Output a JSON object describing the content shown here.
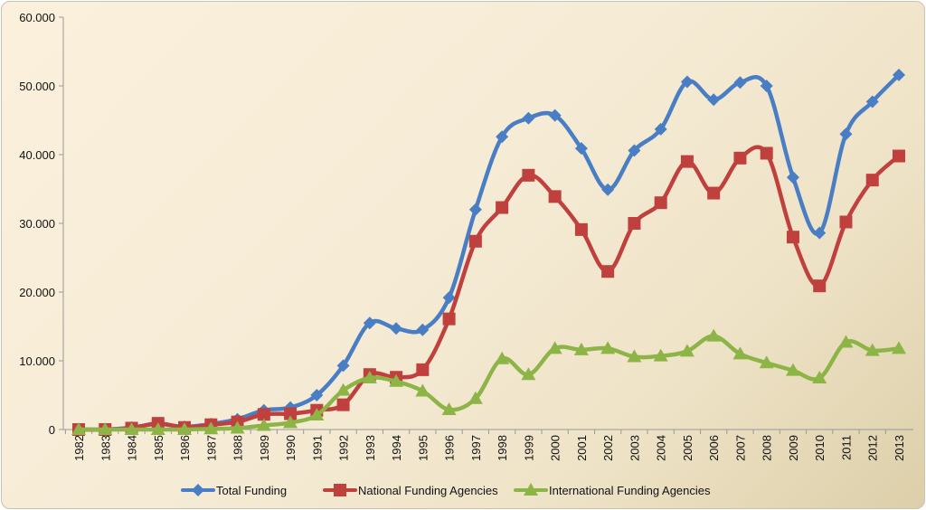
{
  "chart_data": {
    "type": "line",
    "title": "",
    "xlabel": "",
    "ylabel": "",
    "ylim": [
      0,
      60000
    ],
    "yticks": [
      "0",
      "10.000",
      "20.000",
      "30.000",
      "40.000",
      "50.000",
      "60.000"
    ],
    "ytick_values": [
      0,
      10000,
      20000,
      30000,
      40000,
      50000,
      60000
    ],
    "grid": false,
    "legend_position": "bottom",
    "categories": [
      "1982",
      "1983",
      "1984",
      "1985",
      "1986",
      "1987",
      "1988",
      "1989",
      "1990",
      "1991",
      "1992",
      "1993",
      "1994",
      "1995",
      "1996",
      "1997",
      "1998",
      "1999",
      "2000",
      "2001",
      "2002",
      "2003",
      "2004",
      "2005",
      "2006",
      "2007",
      "2008",
      "2009",
      "2010",
      "2011",
      "2012",
      "2013"
    ],
    "series": [
      {
        "name": "Total Funding",
        "color": "#4a7ec4",
        "marker": "diamond",
        "values": [
          0,
          0,
          300,
          800,
          400,
          800,
          1500,
          2800,
          3200,
          5000,
          9300,
          15500,
          14700,
          14500,
          19200,
          32000,
          42600,
          45300,
          45700,
          40900,
          34900,
          40600,
          43700,
          50600,
          48000,
          50500,
          50000,
          36700,
          28600,
          43000,
          47700,
          51600
        ]
      },
      {
        "name": "National Funding Agencies",
        "color": "#c0403d",
        "marker": "square",
        "values": [
          0,
          0,
          200,
          900,
          300,
          700,
          1100,
          2200,
          2300,
          2800,
          3600,
          8000,
          7600,
          8700,
          16100,
          27400,
          32300,
          37000,
          33900,
          29100,
          23000,
          30000,
          33000,
          39000,
          34400,
          39500,
          40200,
          28000,
          20900,
          30200,
          36300,
          39800
        ]
      },
      {
        "name": "International Funding Agencies",
        "color": "#8db446",
        "marker": "triangle",
        "values": [
          0,
          0,
          0,
          0,
          0,
          100,
          200,
          600,
          1000,
          2100,
          5700,
          7500,
          7000,
          5600,
          2900,
          4500,
          10300,
          8000,
          11800,
          11600,
          11800,
          10600,
          10700,
          11400,
          13600,
          11000,
          9700,
          8600,
          7500,
          12700,
          11500,
          11800
        ]
      }
    ]
  }
}
